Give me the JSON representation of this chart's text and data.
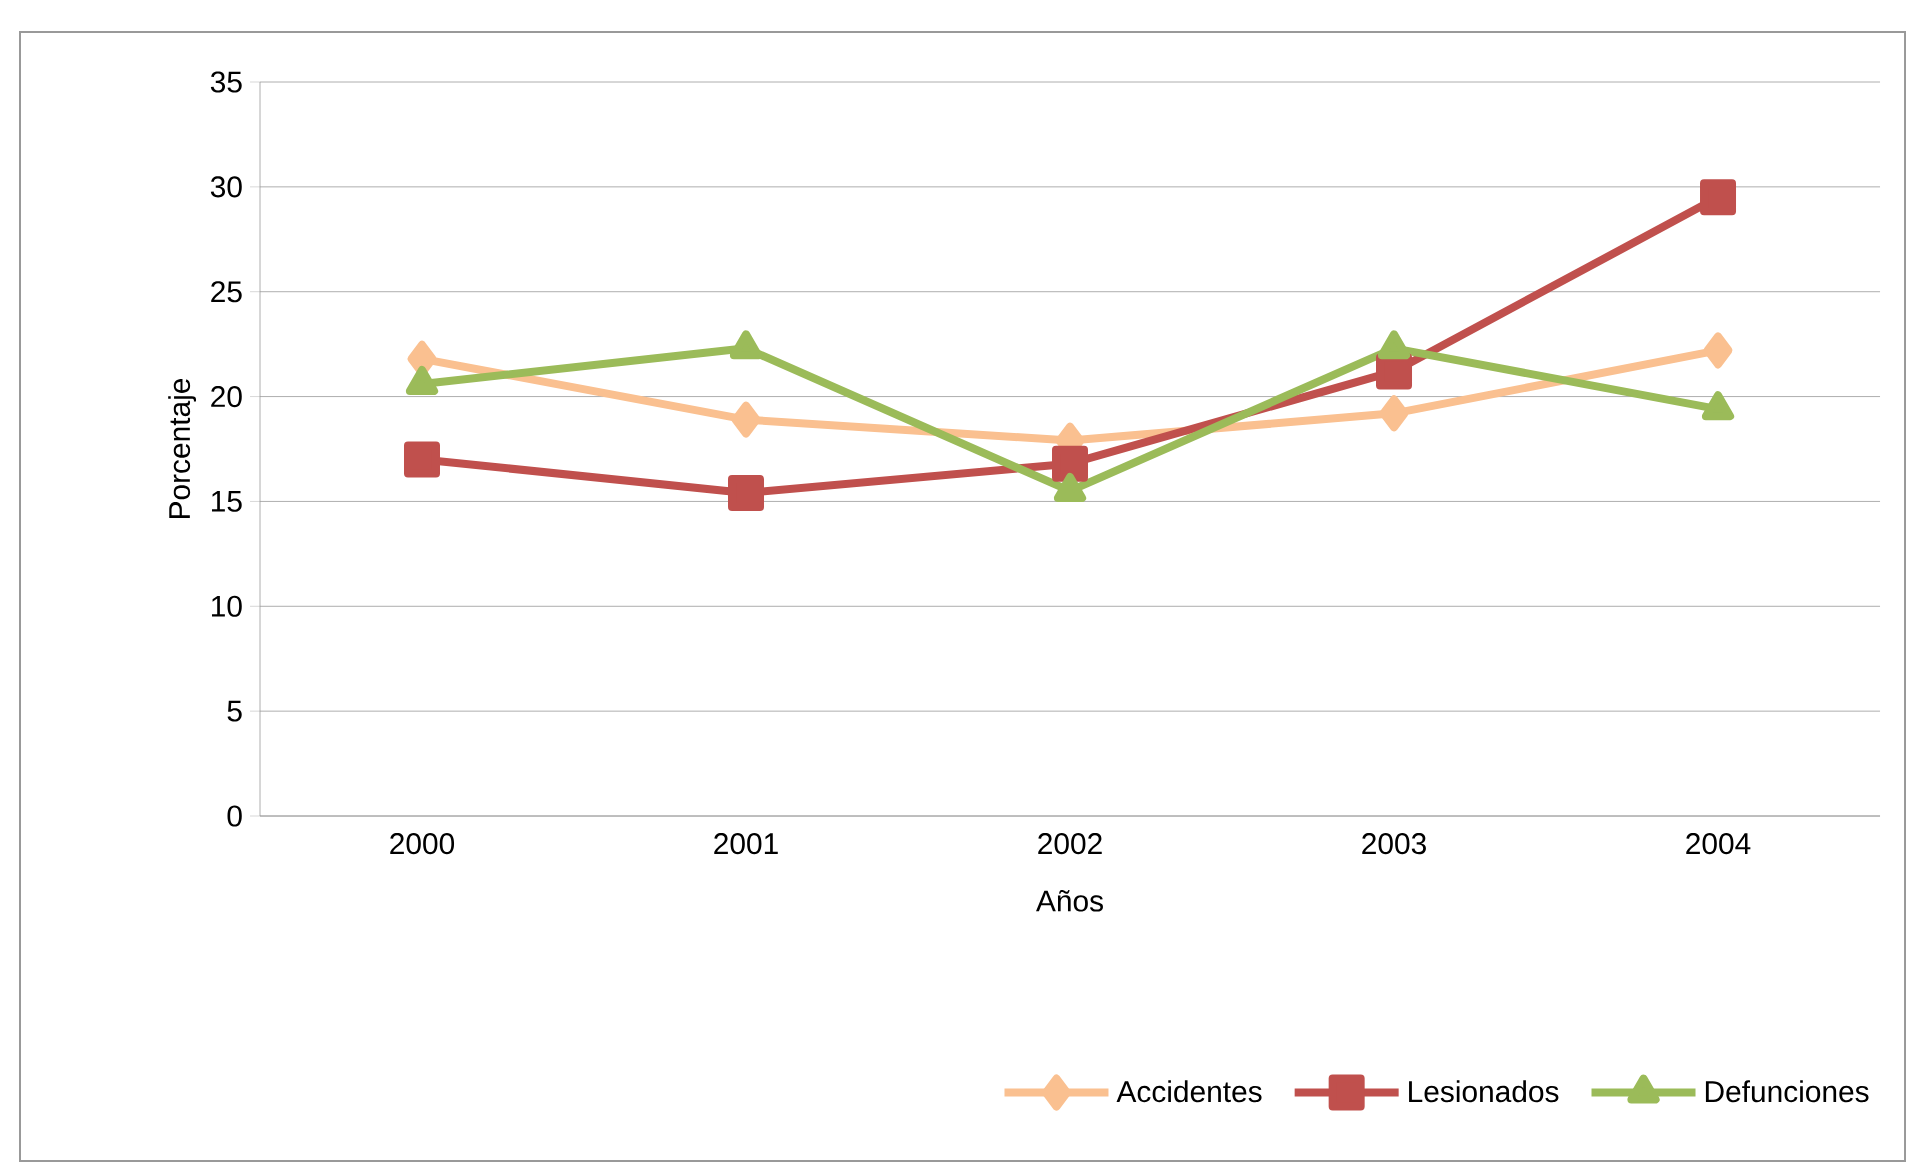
{
  "chart_data": {
    "type": "line",
    "xlabel": "Años",
    "ylabel": "Porcentaje",
    "categories": [
      "2000",
      "2001",
      "2002",
      "2003",
      "2004"
    ],
    "series": [
      {
        "name": "Accidentes",
        "color": "#fac090",
        "marker": "diamond",
        "values": [
          21.8,
          18.9,
          17.9,
          19.2,
          22.2
        ]
      },
      {
        "name": "Lesionados",
        "color": "#c0504d",
        "marker": "square",
        "values": [
          17.0,
          15.4,
          16.8,
          21.2,
          29.5
        ]
      },
      {
        "name": "Defunciones",
        "color": "#9bbb59",
        "marker": "triangle",
        "values": [
          20.6,
          22.3,
          15.5,
          22.3,
          19.4
        ]
      }
    ],
    "ylim": [
      0,
      35
    ],
    "yticks": [
      0,
      5,
      10,
      15,
      20,
      25,
      30,
      35
    ],
    "grid": "y",
    "legend": "bottom right"
  }
}
